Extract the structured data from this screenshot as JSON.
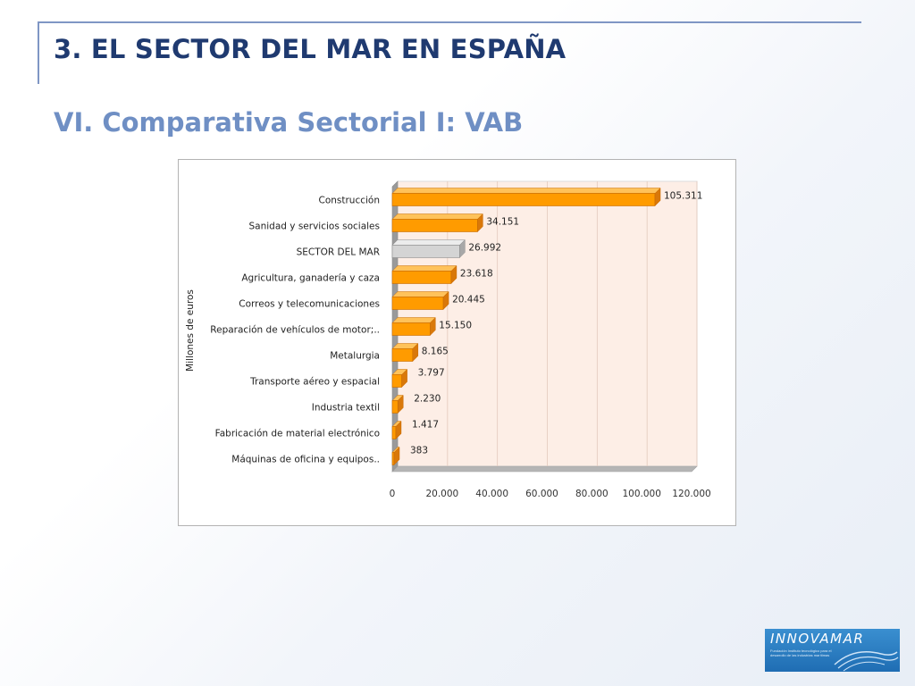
{
  "slide": {
    "title": "3. EL SECTOR DEL MAR EN ESPAÑA",
    "subtitle": "VI. Comparativa Sectorial I: VAB"
  },
  "logo": {
    "text": "INNOVAMAR",
    "caption": "Fundación Instituto tecnológico para el desarrollo de las industrias marítimas"
  },
  "colors": {
    "title": "#1f3a70",
    "subtitle": "#6f8fc4",
    "bar_orange": "#ff9b00",
    "bar_highlight": "#d4d4d4",
    "plot_background": "#fdeee6"
  },
  "chart_data": {
    "type": "bar",
    "orientation": "horizontal",
    "categories": [
      "Construcción",
      "Sanidad y servicios sociales",
      "SECTOR DEL MAR",
      "Agricultura, ganadería y caza",
      "Correos y telecomunicaciones",
      "Reparación de vehículos de motor;..",
      "Metalurgia",
      "Transporte aéreo y espacial",
      "Industria textil",
      "Fabricación de material electrónico",
      "Máquinas de oficina y equipos.."
    ],
    "values": [
      105311,
      34151,
      26992,
      23618,
      20445,
      15150,
      8165,
      3797,
      2230,
      1417,
      383
    ],
    "value_labels": [
      "105.311",
      "34.151",
      "26.992",
      "23.618",
      "20.445",
      "15.150",
      "8.165",
      "3.797",
      "2.230",
      "1.417",
      "383"
    ],
    "highlight_category": "SECTOR DEL MAR",
    "ylabel": "Millones de euros",
    "xlim": [
      0,
      120000
    ],
    "x_ticks": [
      0,
      20000,
      40000,
      60000,
      80000,
      100000,
      120000
    ],
    "x_tick_labels": [
      "0",
      "20.000",
      "40.000",
      "60.000",
      "80.000",
      "100.000",
      "120.000"
    ],
    "grid": true,
    "style": "3d"
  }
}
